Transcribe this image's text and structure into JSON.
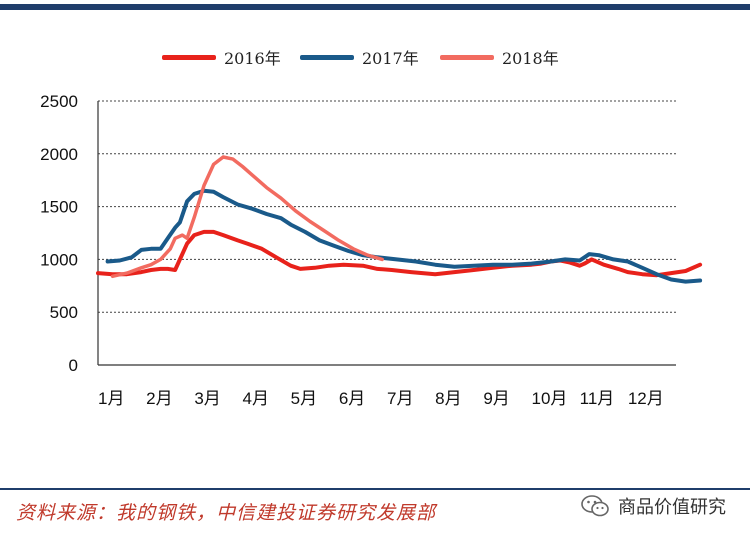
{
  "footer": {
    "source": "资料来源：我的钢铁，中信建投证券研究发展部",
    "brand": "商品价值研究",
    "brand_icon": "wechat-icon"
  },
  "chart_data": {
    "type": "line",
    "x_ticks": [
      "1月",
      "2月",
      "3月",
      "4月",
      "5月",
      "6月",
      "7月",
      "8月",
      "9月",
      "10月",
      "11月",
      "12月"
    ],
    "xlim": [
      0,
      12
    ],
    "ylim": [
      0,
      2500
    ],
    "y_ticks": [
      0,
      500,
      1000,
      1500,
      2000,
      2500
    ],
    "grid": "horizontal dotted",
    "legend_position": "top",
    "series": [
      {
        "name": "2016年",
        "color": "#e8221b",
        "x": [
          0.0,
          0.3,
          0.6,
          0.9,
          1.1,
          1.3,
          1.45,
          1.6,
          1.7,
          1.85,
          2.0,
          2.2,
          2.4,
          2.6,
          2.9,
          3.1,
          3.4,
          3.7,
          4.0,
          4.2,
          4.5,
          4.8,
          5.1,
          5.5,
          5.8,
          6.1,
          6.5,
          7.0,
          7.4,
          7.8,
          8.2,
          8.6,
          9.0,
          9.2,
          9.4,
          9.6,
          9.8,
          10.0,
          10.1,
          10.25,
          10.5,
          10.8,
          11.0,
          11.3,
          11.6,
          11.9,
          12.2,
          12.5
        ],
        "y": [
          870,
          860,
          860,
          880,
          900,
          910,
          910,
          900,
          1000,
          1150,
          1230,
          1260,
          1260,
          1230,
          1180,
          1150,
          1100,
          1020,
          940,
          910,
          920,
          940,
          950,
          940,
          910,
          900,
          880,
          860,
          880,
          900,
          920,
          940,
          950,
          960,
          980,
          990,
          970,
          940,
          960,
          1000,
          950,
          910,
          880,
          860,
          850,
          870,
          890,
          950
        ]
      },
      {
        "name": "2017年",
        "color": "#1a5a8a",
        "x": [
          0.2,
          0.45,
          0.7,
          0.9,
          1.1,
          1.3,
          1.45,
          1.6,
          1.7,
          1.85,
          2.0,
          2.2,
          2.4,
          2.6,
          2.9,
          3.2,
          3.5,
          3.8,
          4.0,
          4.3,
          4.6,
          4.9,
          5.2,
          5.5,
          5.8,
          6.2,
          6.6,
          7.0,
          7.4,
          7.8,
          8.2,
          8.6,
          9.0,
          9.4,
          9.7,
          10.0,
          10.2,
          10.4,
          10.7,
          11.0,
          11.3,
          11.6,
          11.9,
          12.2,
          12.5
        ],
        "y": [
          980,
          990,
          1020,
          1090,
          1100,
          1100,
          1200,
          1300,
          1350,
          1550,
          1620,
          1650,
          1640,
          1590,
          1520,
          1480,
          1430,
          1390,
          1330,
          1260,
          1180,
          1130,
          1080,
          1040,
          1020,
          1000,
          980,
          950,
          930,
          940,
          950,
          950,
          960,
          980,
          1000,
          990,
          1050,
          1040,
          1000,
          980,
          920,
          860,
          810,
          790,
          800
        ]
      },
      {
        "name": "2018年",
        "color": "#f26b60",
        "x": [
          0.3,
          0.6,
          0.9,
          1.1,
          1.3,
          1.5,
          1.6,
          1.75,
          1.85,
          2.0,
          2.2,
          2.4,
          2.6,
          2.8,
          3.0,
          3.2,
          3.5,
          3.8,
          4.1,
          4.4,
          4.7,
          5.0,
          5.3,
          5.6,
          5.9
        ],
        "y": [
          840,
          870,
          920,
          950,
          1000,
          1100,
          1200,
          1230,
          1200,
          1400,
          1700,
          1900,
          1970,
          1950,
          1880,
          1800,
          1680,
          1580,
          1460,
          1360,
          1270,
          1180,
          1100,
          1040,
          1000
        ]
      }
    ]
  }
}
